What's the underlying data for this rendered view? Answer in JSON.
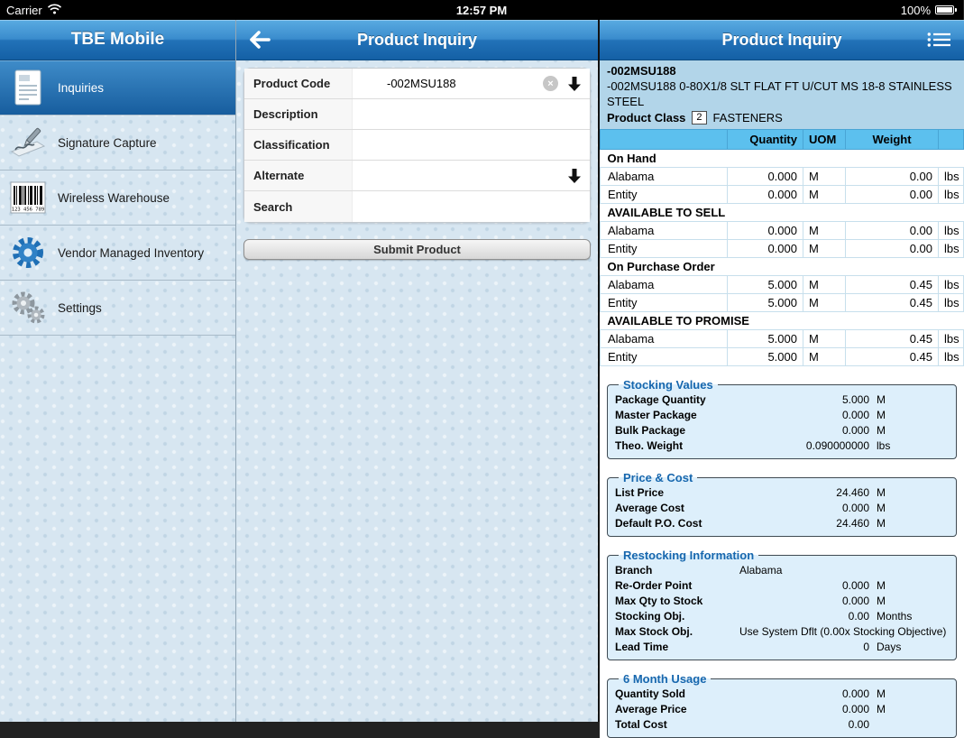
{
  "colors": {
    "header_top": "#5aabe2",
    "header_bottom": "#1460a5",
    "sidebar_bg": "#d7e6f1",
    "selected_top": "#3f8cc9",
    "selected_bottom": "#175d9e",
    "table_header_bg": "#5cc0ee",
    "table_border": "#49a5d5",
    "row_border": "#c7dfec",
    "product_header_bg": "#b2d5e9",
    "group_bg": "#ddeffb",
    "legend_blue": "#1767ae"
  },
  "status_bar": {
    "carrier": "Carrier",
    "time": "12:57 PM",
    "battery_percent": "100%"
  },
  "sidebar": {
    "title": "TBE Mobile",
    "items": [
      {
        "label": "Inquiries",
        "icon": "inquiries-document-icon",
        "selected": true
      },
      {
        "label": "Signature Capture",
        "icon": "signature-pen-icon",
        "selected": false
      },
      {
        "label": "Wireless Warehouse",
        "icon": "barcode-icon",
        "selected": false
      },
      {
        "label": "Vendor Managed Inventory",
        "icon": "vendor-gear-icon",
        "selected": false
      },
      {
        "label": "Settings",
        "icon": "settings-gears-icon",
        "selected": false
      }
    ]
  },
  "form_panel": {
    "title": "Product Inquiry",
    "fields": [
      {
        "label": "Product Code",
        "value": "-002MSU188",
        "clear": true,
        "dropdown": true
      },
      {
        "label": "Description",
        "value": "",
        "clear": false,
        "dropdown": false
      },
      {
        "label": "Classification",
        "value": "",
        "clear": false,
        "dropdown": false
      },
      {
        "label": "Alternate",
        "value": "",
        "clear": false,
        "dropdown": true
      },
      {
        "label": "Search",
        "value": "",
        "clear": false,
        "dropdown": false
      }
    ],
    "submit_label": "Submit Product"
  },
  "detail_panel": {
    "title": "Product Inquiry",
    "product": {
      "code": "-002MSU188",
      "description": "-002MSU188 0-80X1/8 SLT FLAT FT U/CUT MS 18-8 STAINLESS STEEL",
      "class_label": "Product Class",
      "class_code": "2",
      "class_name": "FASTENERS"
    },
    "inventory_table": {
      "headers": [
        "",
        "Quantity",
        "UOM",
        "Weight",
        ""
      ],
      "sections": [
        {
          "title": "On Hand",
          "rows": [
            {
              "branch": "Alabama",
              "quantity": "0.000",
              "uom": "M",
              "weight": "0.00",
              "weight_uom": "lbs"
            },
            {
              "branch": "Entity",
              "quantity": "0.000",
              "uom": "M",
              "weight": "0.00",
              "weight_uom": "lbs"
            }
          ]
        },
        {
          "title": "AVAILABLE TO SELL",
          "rows": [
            {
              "branch": "Alabama",
              "quantity": "0.000",
              "uom": "M",
              "weight": "0.00",
              "weight_uom": "lbs"
            },
            {
              "branch": "Entity",
              "quantity": "0.000",
              "uom": "M",
              "weight": "0.00",
              "weight_uom": "lbs"
            }
          ]
        },
        {
          "title": "On Purchase Order",
          "rows": [
            {
              "branch": "Alabama",
              "quantity": "5.000",
              "uom": "M",
              "weight": "0.45",
              "weight_uom": "lbs"
            },
            {
              "branch": "Entity",
              "quantity": "5.000",
              "uom": "M",
              "weight": "0.45",
              "weight_uom": "lbs"
            }
          ]
        },
        {
          "title": "AVAILABLE TO PROMISE",
          "rows": [
            {
              "branch": "Alabama",
              "quantity": "5.000",
              "uom": "M",
              "weight": "0.45",
              "weight_uom": "lbs"
            },
            {
              "branch": "Entity",
              "quantity": "5.000",
              "uom": "M",
              "weight": "0.45",
              "weight_uom": "lbs"
            }
          ]
        }
      ]
    },
    "groups": [
      {
        "title": "Stocking Values",
        "rows": [
          {
            "label": "Package Quantity",
            "value": "5.000",
            "unit": "M"
          },
          {
            "label": "Master Package",
            "value": "0.000",
            "unit": "M"
          },
          {
            "label": "Bulk Package",
            "value": "0.000",
            "unit": "M"
          },
          {
            "label": "Theo. Weight",
            "value": "0.090000000",
            "unit": "lbs"
          }
        ]
      },
      {
        "title": "Price & Cost",
        "rows": [
          {
            "label": "List Price",
            "value": "24.460",
            "unit": "M"
          },
          {
            "label": "Average Cost",
            "value": "0.000",
            "unit": "M"
          },
          {
            "label": "Default P.O. Cost",
            "value": "24.460",
            "unit": "M"
          }
        ]
      },
      {
        "title": "Restocking Information",
        "rows": [
          {
            "label": "Branch",
            "value": "Alabama",
            "unit": "",
            "align": "left"
          },
          {
            "label": "Re-Order Point",
            "value": "0.000",
            "unit": "M"
          },
          {
            "label": "Max Qty to Stock",
            "value": "0.000",
            "unit": "M"
          },
          {
            "label": "Stocking Obj.",
            "value": "0.00",
            "unit": "Months"
          },
          {
            "label": "Max Stock Obj.",
            "value": "Use System Dflt (0.00x Stocking Objective)",
            "unit": "",
            "align": "left"
          },
          {
            "label": "Lead Time",
            "value": "0",
            "unit": "Days"
          }
        ]
      },
      {
        "title": "6 Month Usage",
        "rows": [
          {
            "label": "Quantity Sold",
            "value": "0.000",
            "unit": "M"
          },
          {
            "label": "Average Price",
            "value": "0.000",
            "unit": "M"
          },
          {
            "label": "Total Cost",
            "value": "0.00",
            "unit": ""
          }
        ]
      }
    ]
  }
}
